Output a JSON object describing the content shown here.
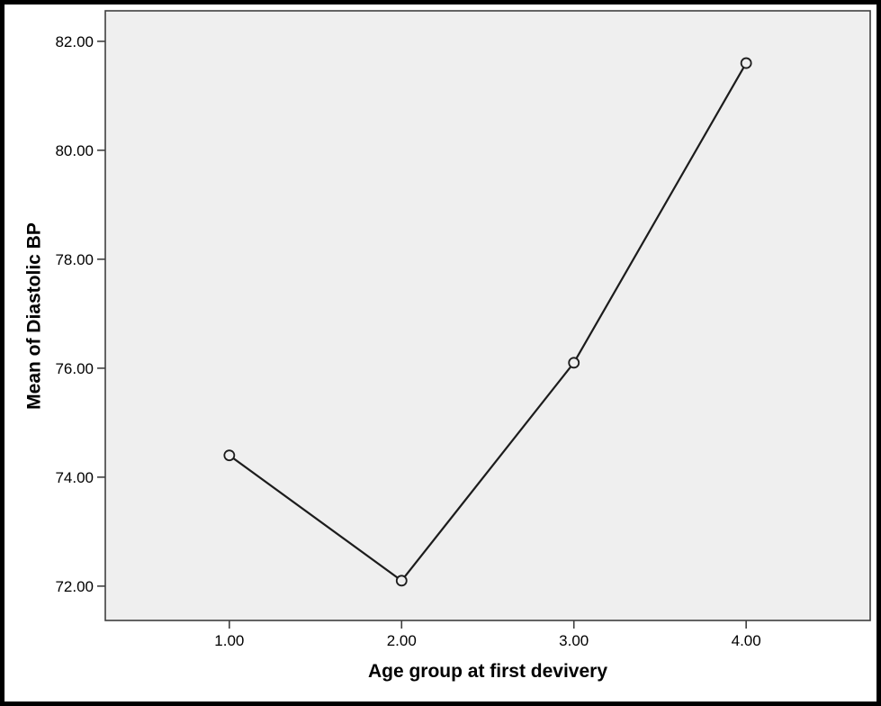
{
  "figure": {
    "background": "#ffffff",
    "frame_color": "#000000",
    "plot_background": "#efefef",
    "axis_color": "#3f3f3f",
    "line_color": "#1c1c1c",
    "marker_fill": "#efefef",
    "text_color": "#000000"
  },
  "chart_data": {
    "type": "line",
    "title": "",
    "xlabel": "Age group at first devivery",
    "ylabel": "Mean of Diastolic BP",
    "x": [
      1.0,
      2.0,
      3.0,
      4.0
    ],
    "values": [
      74.4,
      72.1,
      76.1,
      81.6
    ],
    "series": [
      {
        "name": "Mean of Diastolic BP",
        "values": [
          74.4,
          72.1,
          76.1,
          81.6
        ]
      }
    ],
    "x_ticks": [
      {
        "value": 1.0,
        "label": "1.00"
      },
      {
        "value": 2.0,
        "label": "2.00"
      },
      {
        "value": 3.0,
        "label": "3.00"
      },
      {
        "value": 4.0,
        "label": "4.00"
      }
    ],
    "y_ticks": [
      {
        "value": 72.0,
        "label": "72.00"
      },
      {
        "value": 74.0,
        "label": "74.00"
      },
      {
        "value": 76.0,
        "label": "76.00"
      },
      {
        "value": 78.0,
        "label": "78.00"
      },
      {
        "value": 80.0,
        "label": "80.00"
      },
      {
        "value": 82.0,
        "label": "82.00"
      }
    ],
    "xlim": [
      0.28,
      4.72
    ],
    "ylim": [
      71.37,
      82.56
    ],
    "grid": false,
    "legend": "none",
    "marker": "open-circle"
  }
}
